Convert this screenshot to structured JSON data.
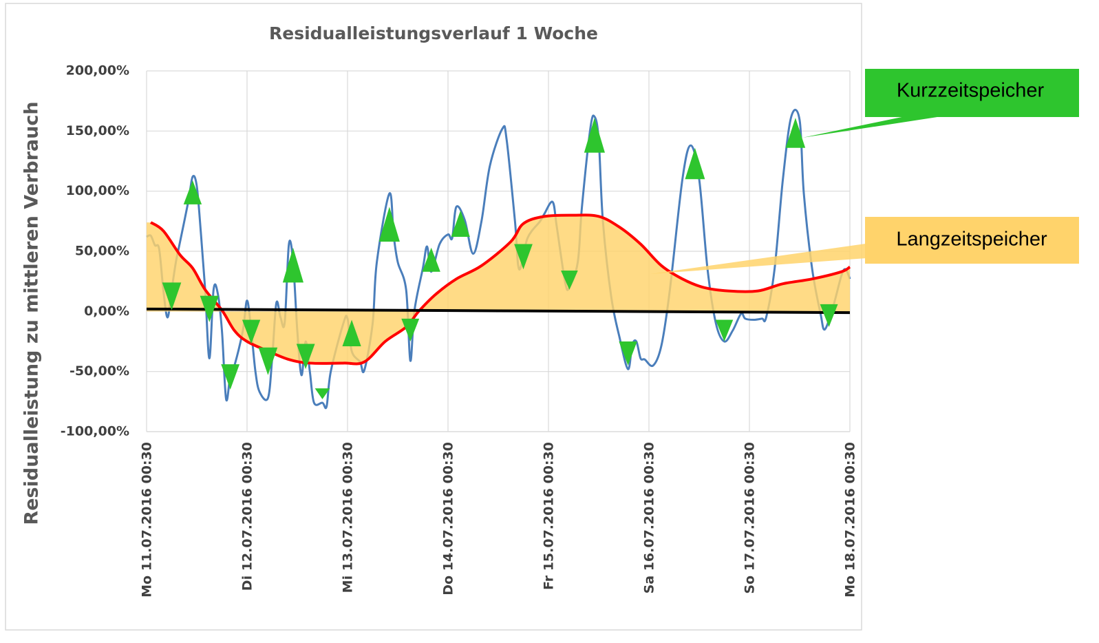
{
  "chart_data": {
    "type": "line",
    "title": "Residualleistungsverlauf 1 Woche",
    "y_label": "Residualleistung zu mittleren Verbrauch",
    "xlim": [
      "2016-07-11T00:30",
      "2016-07-18T00:30"
    ],
    "xticks": [
      {
        "value": "2016-07-11T00:30",
        "label": "Mo  11.07.2016 00:30"
      },
      {
        "value": "2016-07-12T00:30",
        "label": "Di  12.07.2016 00:30"
      },
      {
        "value": "2016-07-13T00:30",
        "label": "Mi  13.07.2016 00:30"
      },
      {
        "value": "2016-07-14T00:30",
        "label": "Do  14.07.2016 00:30"
      },
      {
        "value": "2016-07-15T00:30",
        "label": "Fr  15.07.2016 00:30"
      },
      {
        "value": "2016-07-16T00:30",
        "label": "Sa  16.07.2016 00:30"
      },
      {
        "value": "2016-07-17T00:30",
        "label": "So  17.07.2016 00:30"
      },
      {
        "value": "2016-07-18T00:30",
        "label": "Mo  18.07.2016 00:30"
      }
    ],
    "ylim": [
      -100,
      200
    ],
    "yticks": [
      {
        "value": -100,
        "label": "-100,00%"
      },
      {
        "value": -50,
        "label": "-50,00%"
      },
      {
        "value": 0,
        "label": "0,00%"
      },
      {
        "value": 50,
        "label": "50,00%"
      },
      {
        "value": 100,
        "label": "100,00%"
      },
      {
        "value": 150,
        "label": "150,00%"
      },
      {
        "value": 200,
        "label": "200,00%"
      }
    ],
    "grid": true,
    "series": [
      {
        "color": "#4a7ebb",
        "x": [
          "2016-07-11T00:30",
          "2016-07-11T01:30",
          "2016-07-11T02:30",
          "2016-07-11T03:30",
          "2016-07-11T04:30",
          "2016-07-11T05:30",
          "2016-07-11T06:30",
          "2016-07-11T07:30",
          "2016-07-11T08:30",
          "2016-07-11T10:30",
          "2016-07-11T11:30",
          "2016-07-11T12:30",
          "2016-07-11T13:30",
          "2016-07-11T14:30",
          "2016-07-11T15:30",
          "2016-07-11T16:30",
          "2016-07-11T17:30",
          "2016-07-11T18:30",
          "2016-07-11T19:30",
          "2016-07-11T20:30",
          "2016-07-11T21:30",
          "2016-07-11T23:30",
          "2016-07-12T00:30",
          "2016-07-12T01:30",
          "2016-07-12T02:30",
          "2016-07-12T03:30",
          "2016-07-12T05:30",
          "2016-07-12T06:30",
          "2016-07-12T07:30",
          "2016-07-12T08:30",
          "2016-07-12T09:30",
          "2016-07-12T10:30",
          "2016-07-12T11:30",
          "2016-07-12T12:30",
          "2016-07-12T13:30",
          "2016-07-12T14:30",
          "2016-07-12T15:30",
          "2016-07-12T16:30",
          "2016-07-12T18:30",
          "2016-07-12T19:30",
          "2016-07-12T20:30",
          "2016-07-12T23:30",
          "2016-07-13T00:30",
          "2016-07-13T01:30",
          "2016-07-13T03:30",
          "2016-07-13T04:30",
          "2016-07-13T06:30",
          "2016-07-13T07:30",
          "2016-07-13T10:30",
          "2016-07-13T11:30",
          "2016-07-13T12:30",
          "2016-07-13T14:30",
          "2016-07-13T15:30",
          "2016-07-13T16:30",
          "2016-07-13T18:30",
          "2016-07-13T19:30",
          "2016-07-13T20:30",
          "2016-07-13T22:30",
          "2016-07-14T00:30",
          "2016-07-14T01:30",
          "2016-07-14T02:30",
          "2016-07-14T04:30",
          "2016-07-14T06:30",
          "2016-07-14T08:30",
          "2016-07-14T10:30",
          "2016-07-14T13:30",
          "2016-07-14T14:30",
          "2016-07-14T16:30",
          "2016-07-14T17:30",
          "2016-07-14T19:30",
          "2016-07-14T22:30",
          "2016-07-14T23:30",
          "2016-07-15T01:30",
          "2016-07-15T02:30",
          "2016-07-15T04:30",
          "2016-07-15T05:30",
          "2016-07-15T07:30",
          "2016-07-15T08:30",
          "2016-07-15T10:30",
          "2016-07-15T11:30",
          "2016-07-15T12:30",
          "2016-07-15T13:30",
          "2016-07-15T15:30",
          "2016-07-15T17:30",
          "2016-07-15T19:30",
          "2016-07-15T20:30",
          "2016-07-15T21:30",
          "2016-07-15T22:30",
          "2016-07-15T23:30",
          "2016-07-16T01:30",
          "2016-07-16T03:30",
          "2016-07-16T05:30",
          "2016-07-16T08:30",
          "2016-07-16T10:30",
          "2016-07-16T12:30",
          "2016-07-16T14:30",
          "2016-07-16T16:30",
          "2016-07-16T18:30",
          "2016-07-16T20:30",
          "2016-07-16T22:30",
          "2016-07-16T23:30",
          "2016-07-17T01:30",
          "2016-07-17T03:30",
          "2016-07-17T04:30",
          "2016-07-17T06:30",
          "2016-07-17T08:30",
          "2016-07-17T10:30",
          "2016-07-17T12:30",
          "2016-07-17T13:30",
          "2016-07-17T15:30",
          "2016-07-17T17:30",
          "2016-07-17T18:30",
          "2016-07-17T20:30",
          "2016-07-17T22:30",
          "2016-07-17T23:30",
          "2016-07-18T00:30"
        ],
        "values": [
          62,
          63,
          55,
          52,
          18,
          -5,
          18,
          41,
          58,
          92,
          112,
          104,
          64,
          18,
          -39,
          18,
          15,
          -16,
          -73,
          -53,
          -45,
          -16,
          9,
          -16,
          -50,
          -67,
          -72,
          -39,
          7,
          -5,
          -9,
          56,
          41,
          -16,
          -53,
          -25,
          -50,
          -76,
          -76,
          -79,
          -50,
          -10,
          -6,
          -33,
          -42,
          -49,
          -10,
          41,
          98,
          64,
          41,
          18,
          -41,
          1,
          36,
          54,
          33,
          56,
          64,
          61,
          87,
          76,
          48,
          75,
          121,
          152,
          143,
          75,
          35,
          61,
          75,
          81,
          91,
          70,
          24,
          20,
          41,
          87,
          152,
          162,
          143,
          75,
          12,
          -22,
          -48,
          -28,
          -25,
          -39,
          -40,
          -45,
          -28,
          18,
          110,
          138,
          110,
          35,
          -10,
          -25,
          -16,
          -2,
          -6,
          -7,
          -6,
          -5,
          35,
          110,
          162,
          159,
          98,
          35,
          -2,
          -15,
          4,
          30,
          35,
          27
        ]
      },
      {
        "color": "#000000",
        "x": [
          "2016-07-11T00:30",
          "2016-07-18T00:30"
        ],
        "values": [
          2,
          -1
        ]
      },
      {
        "color": "#ff0000",
        "fill": "#ffd36b",
        "x": [
          "2016-07-11T01:30",
          "2016-07-11T04:30",
          "2016-07-11T08:30",
          "2016-07-11T11:30",
          "2016-07-11T14:30",
          "2016-07-11T18:30",
          "2016-07-11T21:30",
          "2016-07-12T00:30",
          "2016-07-12T05:30",
          "2016-07-12T10:30",
          "2016-07-12T15:30",
          "2016-07-12T23:30",
          "2016-07-13T04:30",
          "2016-07-13T09:30",
          "2016-07-13T14:30",
          "2016-07-13T17:30",
          "2016-07-13T21:30",
          "2016-07-14T02:30",
          "2016-07-14T08:30",
          "2016-07-14T15:30",
          "2016-07-14T18:30",
          "2016-07-14T23:30",
          "2016-07-15T06:30",
          "2016-07-15T12:30",
          "2016-07-15T17:30",
          "2016-07-15T22:30",
          "2016-07-16T03:30",
          "2016-07-16T08:30",
          "2016-07-16T13:30",
          "2016-07-16T19:30",
          "2016-07-17T02:30",
          "2016-07-17T08:30",
          "2016-07-17T15:30",
          "2016-07-17T22:30",
          "2016-07-18T00:30"
        ],
        "values": [
          74,
          67,
          47,
          36,
          18,
          1,
          -16,
          -25,
          -33,
          -40,
          -43,
          -43,
          -42,
          -25,
          -13,
          0,
          14,
          27,
          38,
          58,
          73,
          79,
          80,
          79,
          70,
          56,
          38,
          27,
          20,
          17,
          17,
          23,
          27,
          33,
          37
        ]
      }
    ],
    "markers": {
      "color": "#2ec52e",
      "x": [
        "2016-07-11T06:30",
        "2016-07-11T11:30",
        "2016-07-11T15:30",
        "2016-07-11T20:30",
        "2016-07-12T01:30",
        "2016-07-12T05:30",
        "2016-07-12T11:30",
        "2016-07-12T14:30",
        "2016-07-12T18:30",
        "2016-07-13T01:30",
        "2016-07-13T10:30",
        "2016-07-13T15:30",
        "2016-07-13T20:30",
        "2016-07-14T03:30",
        "2016-07-14T18:30",
        "2016-07-15T05:30",
        "2016-07-15T11:30",
        "2016-07-15T19:30",
        "2016-07-16T11:30",
        "2016-07-16T18:30",
        "2016-07-17T11:30",
        "2016-07-17T19:30"
      ],
      "values": [
        24,
        89,
        13,
        -44,
        -7,
        -30,
        24,
        -27,
        -64,
        -29,
        58,
        -6,
        33,
        62,
        56,
        34,
        132,
        -25,
        110,
        -7,
        136,
        6
      ],
      "tips": [
        1,
        109,
        -9,
        -65,
        -27,
        -53,
        53,
        -48,
        -73,
        -7,
        87,
        -25,
        53,
        84,
        35,
        18,
        161,
        -45,
        136,
        -25,
        161,
        -13
      ]
    },
    "annotations": [
      "Kurzzeitspeicher",
      "Langzeitspeicher"
    ]
  }
}
